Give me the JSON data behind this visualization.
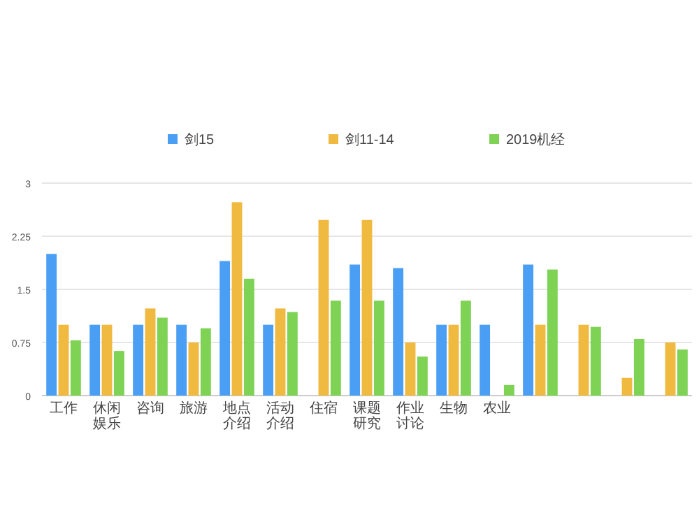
{
  "chart_data": {
    "type": "bar",
    "categories": [
      "工作",
      "休闲娱乐",
      "咨询",
      "旅游",
      "地点介绍",
      "活动介绍",
      "住宿",
      "课题研究",
      "作业讨论",
      "生物",
      "农业",
      null,
      null,
      null,
      null
    ],
    "series": [
      {
        "name": "剑15",
        "color": "#4a9ff5",
        "values": [
          2.0,
          1.0,
          1.0,
          1.0,
          1.9,
          1.0,
          null,
          1.85,
          1.8,
          1.0,
          1.0,
          1.85,
          null,
          null,
          null
        ]
      },
      {
        "name": "剑11-14",
        "color": "#f0b940",
        "values": [
          1.0,
          1.0,
          1.23,
          0.75,
          2.73,
          1.23,
          2.48,
          2.48,
          0.75,
          1.0,
          null,
          1.0,
          1.0,
          0.25,
          0.75
        ]
      },
      {
        "name": "2019机经",
        "color": "#7ed254",
        "values": [
          0.78,
          0.63,
          1.1,
          0.95,
          1.65,
          1.18,
          1.34,
          1.34,
          0.55,
          1.34,
          0.15,
          1.78,
          0.97,
          0.8,
          0.65
        ]
      }
    ],
    "ylim": [
      0,
      3
    ],
    "yticks": [
      0,
      0.75,
      1.5,
      2.25,
      3
    ],
    "grid": "y",
    "legend": "top"
  }
}
